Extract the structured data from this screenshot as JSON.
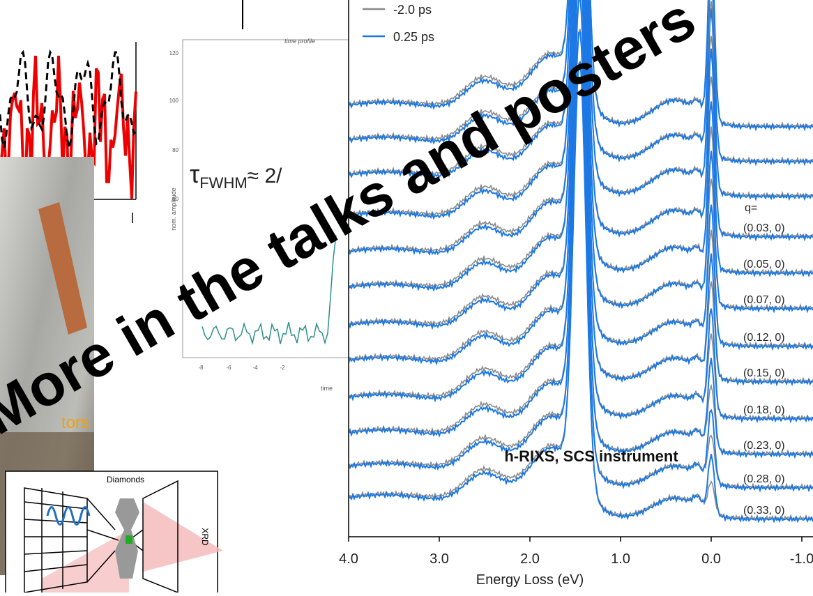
{
  "banner": "More in the talks and posters",
  "rixs": {
    "legend": [
      "-2.0 ps",
      "0.25 ps"
    ],
    "xticks": [
      {
        "value": 4,
        "label": "4.0"
      },
      {
        "value": 3,
        "label": "3.0"
      },
      {
        "value": 2,
        "label": "2.0"
      },
      {
        "value": 1,
        "label": "1.0"
      },
      {
        "value": 0,
        "label": "0.0"
      },
      {
        "value": -1,
        "label": "-1.0"
      }
    ],
    "xlabel": "Energy Loss (eV)",
    "q_title": "q=",
    "q_labels": [
      "(0.03, 0)",
      "(0.05, 0)",
      "(0.07, 0)",
      "(0.12, 0)",
      "(0.15, 0)",
      "(0.18, 0)",
      "(0.23, 0)",
      "(0.28, 0)",
      "(0.33, 0)"
    ],
    "caption": "h-RIXS, SCS instrument"
  },
  "time_profile": {
    "title": "time profile",
    "ylabel": "nom. amplitude",
    "yticks": [
      "120",
      "100",
      "80",
      "60"
    ],
    "xticks": [
      "-8",
      "-6",
      "-4",
      "-2"
    ],
    "xlabel": "time",
    "annotation": {
      "symbol": "τ",
      "subscript": "FWHM",
      "text": "≈ 2/"
    }
  },
  "photo": {
    "caption": "tors"
  },
  "diagram": {
    "label_top": "Diamonds",
    "label_side": "XRD"
  }
}
